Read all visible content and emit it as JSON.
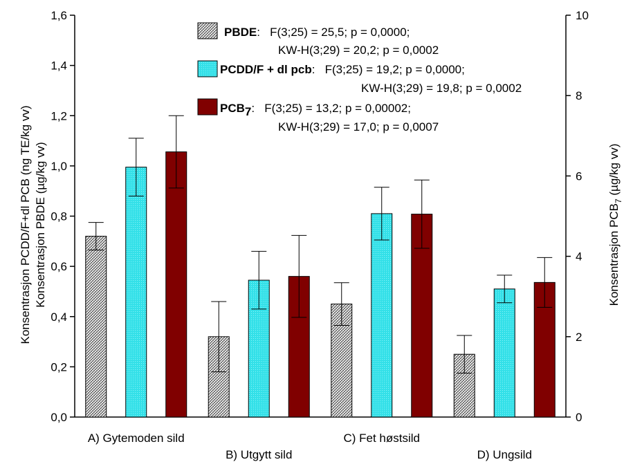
{
  "chart_data": {
    "type": "bar",
    "categories": [
      "A) Gytemoden sild",
      "B) Utgytt sild",
      "C) Fet høstsild",
      "D) Ungsild"
    ],
    "left_axis": {
      "label_line1": "Konsentrasjon PCDD/F+dl PCB (ng TE/kg vv)",
      "label_line2": "Konsentrasjon PBDE (µg/kg vv)",
      "ylim": [
        0,
        1.6
      ],
      "ticks": [
        "0,0",
        "0,2",
        "0,4",
        "0,6",
        "0,8",
        "1,0",
        "1,2",
        "1,4",
        "1,6"
      ]
    },
    "right_axis": {
      "label_prefix": "Konsentrasjon PCB",
      "label_sub": "7",
      "label_suffix": " (µg/kg vv)",
      "ylim": [
        0,
        10
      ],
      "ticks": [
        "0",
        "2",
        "4",
        "6",
        "8",
        "10"
      ]
    },
    "series": [
      {
        "name": "PBDE",
        "axis": "left",
        "color": "#9a9a9a",
        "pattern": "hatch",
        "values": [
          0.72,
          0.32,
          0.45,
          0.25
        ],
        "errors": [
          0.055,
          0.14,
          0.085,
          0.075
        ],
        "stats_line1": ":   F(3;25) = 25,5; p = 0,0000;",
        "stats_line2": "KW-H(3;29) = 20,2; p = 0,0002"
      },
      {
        "name": "PCDD/F + dl pcb",
        "axis": "left",
        "color": "#33e0e8",
        "pattern": "dots",
        "values": [
          0.995,
          0.545,
          0.81,
          0.51
        ],
        "errors": [
          0.115,
          0.115,
          0.105,
          0.055
        ],
        "stats_line1": ":   F(3;25) = 19,2; p = 0,0000;",
        "stats_line2": "KW-H(3;29) = 19,8; p = 0,0002"
      },
      {
        "name": "PCB",
        "name_sub": "7",
        "axis": "right",
        "color": "#800000",
        "pattern": "solid",
        "values": [
          6.6,
          3.5,
          5.05,
          3.35
        ],
        "errors": [
          0.9,
          1.02,
          0.85,
          0.62
        ],
        "stats_line1": ":   F(3;25) = 13,2; p = 0,00002;",
        "stats_line2": "KW-H(3;29) = 17,0; p = 0,0007"
      }
    ],
    "grid": false,
    "legend_position": "top-center"
  }
}
